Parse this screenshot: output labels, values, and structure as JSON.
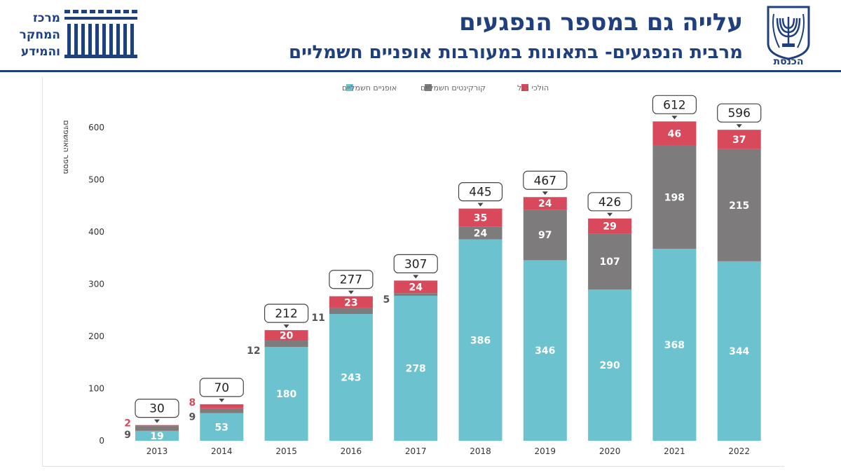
{
  "header": {
    "title": "עלייה גם במספר הנפגעים",
    "subtitle": "מרבית הנפגעים- בתאונות במעורבות אופניים חשמליים",
    "left_logo_lines": [
      "מרכז",
      "המחקר",
      "והמידע"
    ],
    "right_logo_text": "הכנסת",
    "right_logo_icon": "menorah-emblem-icon",
    "left_logo_icon": "building-columns-icon",
    "accent_color": "#1f3f7f"
  },
  "chart_data": {
    "type": "bar",
    "stacked": true,
    "categories": [
      "2013",
      "2014",
      "2015",
      "2016",
      "2017",
      "2018",
      "2019",
      "2020",
      "2021",
      "2022"
    ],
    "series": [
      {
        "name": "אופניים חשמליים",
        "color": "#6cc3cf",
        "values": [
          19,
          53,
          180,
          243,
          278,
          386,
          346,
          290,
          368,
          344
        ],
        "labels": [
          "19",
          "53",
          "180",
          "243",
          "278",
          "386",
          "346",
          "290",
          "368",
          "344"
        ]
      },
      {
        "name": "קורקינטים חשמליים",
        "color": "#7d7b7b",
        "values": [
          9,
          9,
          12,
          11,
          5,
          24,
          97,
          107,
          198,
          215
        ],
        "labels": [
          "9",
          "9",
          "12",
          "11",
          "5",
          "24",
          "97",
          "107",
          "198",
          "215"
        ]
      },
      {
        "name": "הולכי רגל",
        "color": "#d8495c",
        "values": [
          2,
          8,
          20,
          23,
          24,
          35,
          24,
          29,
          46,
          37
        ],
        "labels": [
          "2",
          "8",
          "20",
          "23",
          "24",
          "35",
          "24",
          "29",
          "46",
          "37"
        ]
      }
    ],
    "totals": [
      "30",
      "70",
      "212",
      "277",
      "307",
      "445",
      "467",
      "426",
      "612",
      "596"
    ],
    "ylabel": "מספר האושפזים",
    "ylim": [
      0,
      650
    ],
    "yticks": [
      "0",
      "100",
      "200",
      "300",
      "400",
      "500",
      "600"
    ],
    "grid": false,
    "legend_position": "top"
  }
}
